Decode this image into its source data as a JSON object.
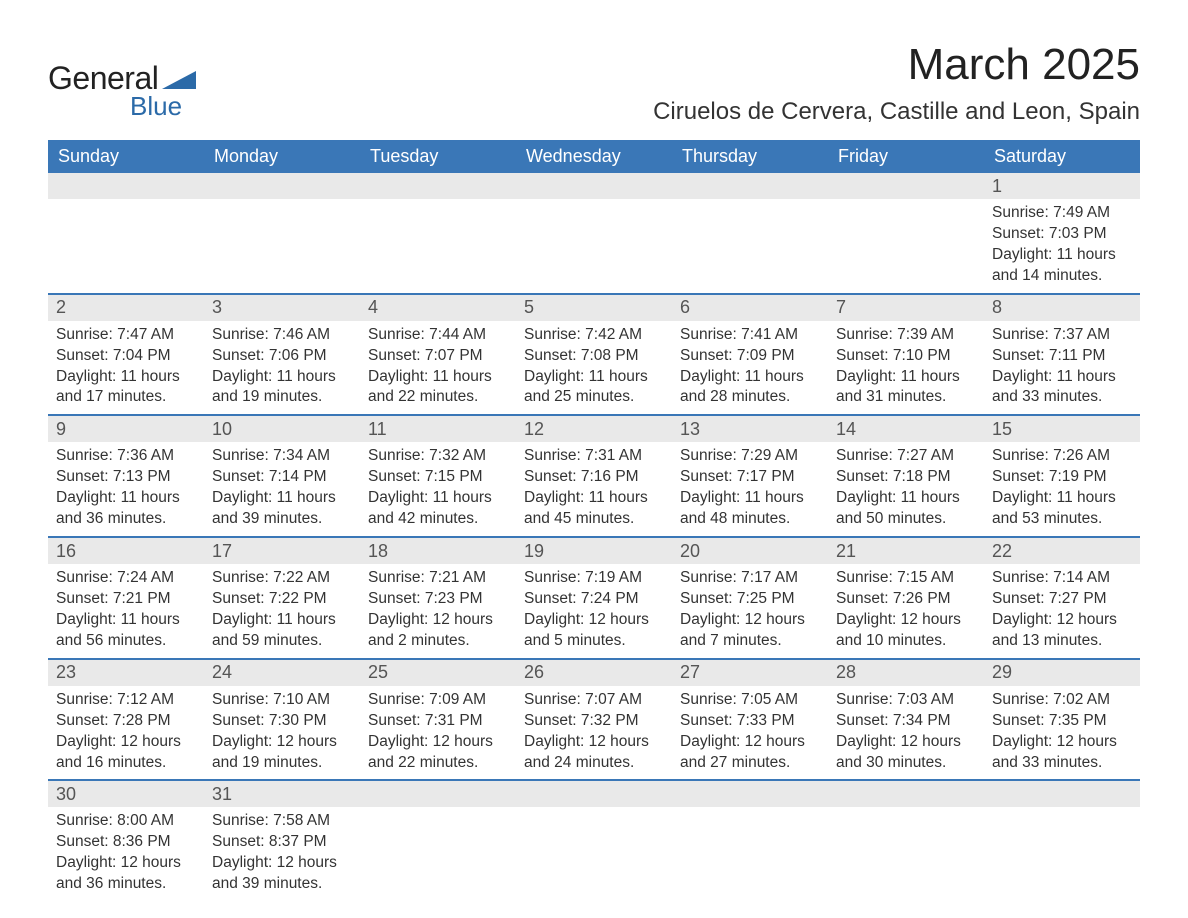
{
  "logo": {
    "text1": "General",
    "text2": "Blue",
    "accent_color": "#2b6aa8"
  },
  "title": "March 2025",
  "location": "Ciruelos de Cervera, Castille and Leon, Spain",
  "header_bg": "#3a77b7",
  "daybar_bg": "#e9e9e9",
  "weekdays": [
    "Sunday",
    "Monday",
    "Tuesday",
    "Wednesday",
    "Thursday",
    "Friday",
    "Saturday"
  ],
  "weeks": [
    [
      null,
      null,
      null,
      null,
      null,
      null,
      {
        "n": "1",
        "sunrise": "Sunrise: 7:49 AM",
        "sunset": "Sunset: 7:03 PM",
        "day": "Daylight: 11 hours and 14 minutes."
      }
    ],
    [
      {
        "n": "2",
        "sunrise": "Sunrise: 7:47 AM",
        "sunset": "Sunset: 7:04 PM",
        "day": "Daylight: 11 hours and 17 minutes."
      },
      {
        "n": "3",
        "sunrise": "Sunrise: 7:46 AM",
        "sunset": "Sunset: 7:06 PM",
        "day": "Daylight: 11 hours and 19 minutes."
      },
      {
        "n": "4",
        "sunrise": "Sunrise: 7:44 AM",
        "sunset": "Sunset: 7:07 PM",
        "day": "Daylight: 11 hours and 22 minutes."
      },
      {
        "n": "5",
        "sunrise": "Sunrise: 7:42 AM",
        "sunset": "Sunset: 7:08 PM",
        "day": "Daylight: 11 hours and 25 minutes."
      },
      {
        "n": "6",
        "sunrise": "Sunrise: 7:41 AM",
        "sunset": "Sunset: 7:09 PM",
        "day": "Daylight: 11 hours and 28 minutes."
      },
      {
        "n": "7",
        "sunrise": "Sunrise: 7:39 AM",
        "sunset": "Sunset: 7:10 PM",
        "day": "Daylight: 11 hours and 31 minutes."
      },
      {
        "n": "8",
        "sunrise": "Sunrise: 7:37 AM",
        "sunset": "Sunset: 7:11 PM",
        "day": "Daylight: 11 hours and 33 minutes."
      }
    ],
    [
      {
        "n": "9",
        "sunrise": "Sunrise: 7:36 AM",
        "sunset": "Sunset: 7:13 PM",
        "day": "Daylight: 11 hours and 36 minutes."
      },
      {
        "n": "10",
        "sunrise": "Sunrise: 7:34 AM",
        "sunset": "Sunset: 7:14 PM",
        "day": "Daylight: 11 hours and 39 minutes."
      },
      {
        "n": "11",
        "sunrise": "Sunrise: 7:32 AM",
        "sunset": "Sunset: 7:15 PM",
        "day": "Daylight: 11 hours and 42 minutes."
      },
      {
        "n": "12",
        "sunrise": "Sunrise: 7:31 AM",
        "sunset": "Sunset: 7:16 PM",
        "day": "Daylight: 11 hours and 45 minutes."
      },
      {
        "n": "13",
        "sunrise": "Sunrise: 7:29 AM",
        "sunset": "Sunset: 7:17 PM",
        "day": "Daylight: 11 hours and 48 minutes."
      },
      {
        "n": "14",
        "sunrise": "Sunrise: 7:27 AM",
        "sunset": "Sunset: 7:18 PM",
        "day": "Daylight: 11 hours and 50 minutes."
      },
      {
        "n": "15",
        "sunrise": "Sunrise: 7:26 AM",
        "sunset": "Sunset: 7:19 PM",
        "day": "Daylight: 11 hours and 53 minutes."
      }
    ],
    [
      {
        "n": "16",
        "sunrise": "Sunrise: 7:24 AM",
        "sunset": "Sunset: 7:21 PM",
        "day": "Daylight: 11 hours and 56 minutes."
      },
      {
        "n": "17",
        "sunrise": "Sunrise: 7:22 AM",
        "sunset": "Sunset: 7:22 PM",
        "day": "Daylight: 11 hours and 59 minutes."
      },
      {
        "n": "18",
        "sunrise": "Sunrise: 7:21 AM",
        "sunset": "Sunset: 7:23 PM",
        "day": "Daylight: 12 hours and 2 minutes."
      },
      {
        "n": "19",
        "sunrise": "Sunrise: 7:19 AM",
        "sunset": "Sunset: 7:24 PM",
        "day": "Daylight: 12 hours and 5 minutes."
      },
      {
        "n": "20",
        "sunrise": "Sunrise: 7:17 AM",
        "sunset": "Sunset: 7:25 PM",
        "day": "Daylight: 12 hours and 7 minutes."
      },
      {
        "n": "21",
        "sunrise": "Sunrise: 7:15 AM",
        "sunset": "Sunset: 7:26 PM",
        "day": "Daylight: 12 hours and 10 minutes."
      },
      {
        "n": "22",
        "sunrise": "Sunrise: 7:14 AM",
        "sunset": "Sunset: 7:27 PM",
        "day": "Daylight: 12 hours and 13 minutes."
      }
    ],
    [
      {
        "n": "23",
        "sunrise": "Sunrise: 7:12 AM",
        "sunset": "Sunset: 7:28 PM",
        "day": "Daylight: 12 hours and 16 minutes."
      },
      {
        "n": "24",
        "sunrise": "Sunrise: 7:10 AM",
        "sunset": "Sunset: 7:30 PM",
        "day": "Daylight: 12 hours and 19 minutes."
      },
      {
        "n": "25",
        "sunrise": "Sunrise: 7:09 AM",
        "sunset": "Sunset: 7:31 PM",
        "day": "Daylight: 12 hours and 22 minutes."
      },
      {
        "n": "26",
        "sunrise": "Sunrise: 7:07 AM",
        "sunset": "Sunset: 7:32 PM",
        "day": "Daylight: 12 hours and 24 minutes."
      },
      {
        "n": "27",
        "sunrise": "Sunrise: 7:05 AM",
        "sunset": "Sunset: 7:33 PM",
        "day": "Daylight: 12 hours and 27 minutes."
      },
      {
        "n": "28",
        "sunrise": "Sunrise: 7:03 AM",
        "sunset": "Sunset: 7:34 PM",
        "day": "Daylight: 12 hours and 30 minutes."
      },
      {
        "n": "29",
        "sunrise": "Sunrise: 7:02 AM",
        "sunset": "Sunset: 7:35 PM",
        "day": "Daylight: 12 hours and 33 minutes."
      }
    ],
    [
      {
        "n": "30",
        "sunrise": "Sunrise: 8:00 AM",
        "sunset": "Sunset: 8:36 PM",
        "day": "Daylight: 12 hours and 36 minutes."
      },
      {
        "n": "31",
        "sunrise": "Sunrise: 7:58 AM",
        "sunset": "Sunset: 8:37 PM",
        "day": "Daylight: 12 hours and 39 minutes."
      },
      null,
      null,
      null,
      null,
      null
    ]
  ]
}
